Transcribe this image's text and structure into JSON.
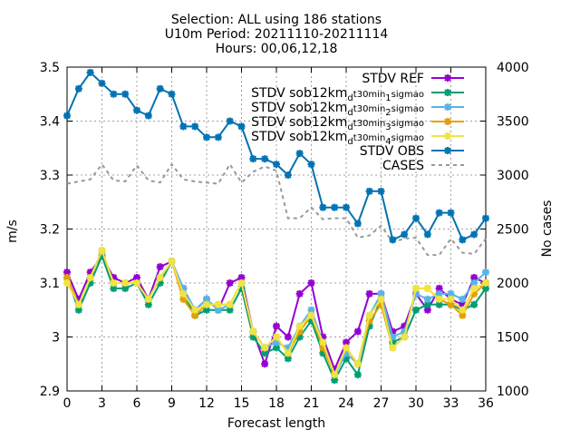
{
  "chart_data": {
    "type": "line",
    "title_lines": [
      "Selection: ALL using    186 stations",
      "U10m   Period: 20211110-20211114",
      "Hours: 00,06,12,18"
    ],
    "xlabel": "Forecast length",
    "ylabel": "m/s",
    "y2label": "No cases",
    "xlim": [
      0,
      36
    ],
    "ylim": [
      2.9,
      3.5
    ],
    "y2lim": [
      1000,
      4000
    ],
    "x_ticks": [
      0,
      3,
      6,
      9,
      12,
      15,
      18,
      21,
      24,
      27,
      30,
      33,
      36
    ],
    "y_ticks": [
      "2.9",
      "3",
      "3.1",
      "3.2",
      "3.3",
      "3.4",
      "3.5"
    ],
    "y2_ticks": [
      1000,
      1500,
      2000,
      2500,
      3000,
      3500,
      4000
    ],
    "grid": true,
    "legend_position": "top-right",
    "x": [
      0,
      1,
      2,
      3,
      4,
      5,
      6,
      7,
      8,
      9,
      10,
      11,
      12,
      13,
      14,
      15,
      16,
      17,
      18,
      19,
      20,
      21,
      22,
      23,
      24,
      25,
      26,
      27,
      28,
      29,
      30,
      31,
      32,
      33,
      34,
      35,
      36
    ],
    "series": [
      {
        "name": "STDV REF",
        "color": "#9400d3",
        "marker": "x",
        "axis": "y1",
        "values": [
          3.12,
          3.07,
          3.12,
          3.15,
          3.11,
          3.1,
          3.11,
          3.07,
          3.13,
          3.14,
          3.09,
          3.05,
          3.07,
          3.05,
          3.1,
          3.11,
          3.01,
          2.95,
          3.02,
          3.0,
          3.08,
          3.1,
          3.0,
          2.94,
          2.99,
          3.01,
          3.08,
          3.08,
          3.01,
          3.02,
          3.08,
          3.05,
          3.09,
          3.07,
          3.06,
          3.11,
          3.1
        ]
      },
      {
        "name": "STDV sob12km_dt30min_1sigmao",
        "label_parts": [
          "STDV sob12km",
          "d",
          "t30min",
          "1",
          "sigmao"
        ],
        "color": "#009e73",
        "marker": "x",
        "axis": "y1",
        "values": [
          3.11,
          3.05,
          3.1,
          3.15,
          3.09,
          3.09,
          3.1,
          3.06,
          3.1,
          3.14,
          3.08,
          3.04,
          3.05,
          3.05,
          3.05,
          3.09,
          3.0,
          2.97,
          2.98,
          2.96,
          3.0,
          3.03,
          2.97,
          2.92,
          2.96,
          2.93,
          3.02,
          3.07,
          2.99,
          3.0,
          3.05,
          3.06,
          3.06,
          3.06,
          3.05,
          3.06,
          3.09
        ]
      },
      {
        "name": "STDV sob12km_dt30min_2sigmao",
        "label_parts": [
          "STDV sob12km",
          "d",
          "t30min",
          "2",
          "sigmao"
        ],
        "color": "#56b4e9",
        "marker": "x",
        "axis": "y1",
        "values": [
          3.11,
          3.06,
          3.11,
          3.16,
          3.1,
          3.1,
          3.1,
          3.07,
          3.11,
          3.14,
          3.09,
          3.05,
          3.07,
          3.05,
          3.06,
          3.1,
          3.01,
          2.98,
          2.99,
          2.98,
          3.02,
          3.05,
          2.99,
          2.93,
          2.97,
          2.95,
          3.04,
          3.08,
          3.0,
          3.01,
          3.08,
          3.07,
          3.08,
          3.08,
          3.07,
          3.1,
          3.12
        ]
      },
      {
        "name": "STDV sob12km_dt30min_3sigmao",
        "label_parts": [
          "STDV sob12km",
          "d",
          "t30min",
          "3",
          "sigmao"
        ],
        "color": "#e69f00",
        "marker": "x",
        "axis": "y1",
        "values": [
          3.11,
          3.06,
          3.11,
          3.16,
          3.1,
          3.1,
          3.1,
          3.07,
          3.11,
          3.14,
          3.07,
          3.04,
          3.06,
          3.06,
          3.06,
          3.1,
          3.01,
          2.98,
          3.0,
          2.97,
          3.01,
          3.04,
          2.98,
          2.93,
          2.98,
          2.95,
          3.03,
          3.06,
          2.98,
          3.0,
          3.09,
          3.09,
          3.07,
          3.06,
          3.04,
          3.08,
          3.1
        ]
      },
      {
        "name": "STDV sob12km_dt30min_4sigmao",
        "label_parts": [
          "STDV sob12km",
          "d",
          "t30min",
          "4",
          "sigmao"
        ],
        "color": "#f0e442",
        "marker": "x",
        "axis": "y1",
        "values": [
          3.1,
          3.06,
          3.11,
          3.16,
          3.1,
          3.1,
          3.1,
          3.07,
          3.11,
          3.14,
          3.08,
          3.05,
          3.06,
          3.06,
          3.06,
          3.1,
          3.01,
          2.98,
          3.0,
          2.97,
          3.02,
          3.04,
          2.99,
          2.93,
          2.98,
          2.95,
          3.04,
          3.07,
          2.98,
          3.0,
          3.09,
          3.09,
          3.07,
          3.07,
          3.05,
          3.09,
          3.1
        ]
      },
      {
        "name": "STDV OBS",
        "color": "#0072b2",
        "marker": "x",
        "axis": "y1",
        "values": [
          3.41,
          3.46,
          3.49,
          3.47,
          3.45,
          3.45,
          3.42,
          3.41,
          3.46,
          3.45,
          3.39,
          3.39,
          3.37,
          3.37,
          3.4,
          3.39,
          3.33,
          3.33,
          3.32,
          3.3,
          3.34,
          3.32,
          3.24,
          3.24,
          3.24,
          3.21,
          3.27,
          3.27,
          3.18,
          3.19,
          3.22,
          3.19,
          3.23,
          3.23,
          3.18,
          3.19,
          3.22
        ]
      },
      {
        "name": "CASES",
        "color": "#999999",
        "marker": "none",
        "dash": true,
        "axis": "y2",
        "values": [
          2920,
          2940,
          2960,
          3100,
          2950,
          2940,
          3090,
          2950,
          2930,
          3100,
          2960,
          2940,
          2930,
          2920,
          3100,
          2930,
          3030,
          3080,
          3040,
          2600,
          2600,
          2700,
          2590,
          2600,
          2600,
          2420,
          2440,
          2530,
          2380,
          2410,
          2420,
          2260,
          2260,
          2410,
          2280,
          2270,
          2410
        ]
      }
    ]
  }
}
